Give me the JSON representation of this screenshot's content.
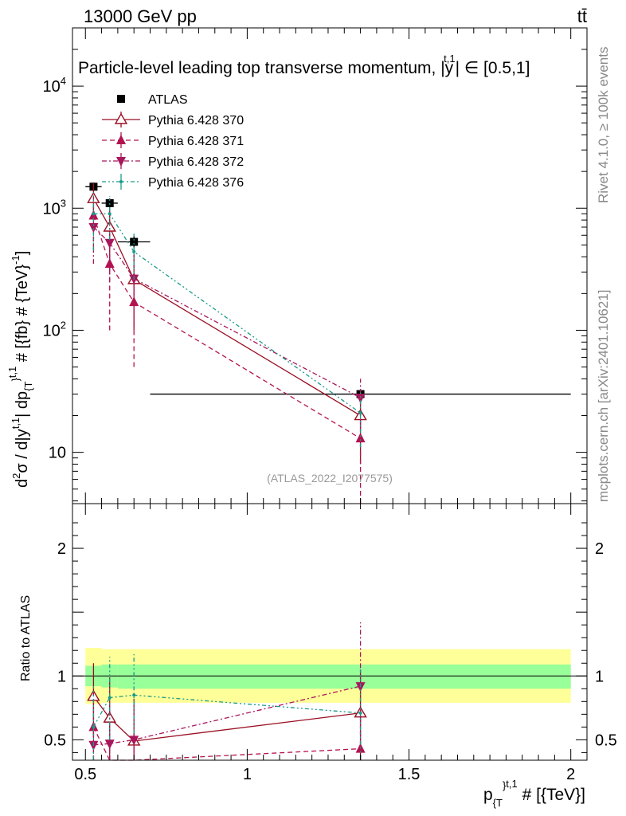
{
  "header": {
    "energy": "13000 GeV pp",
    "process": "tt̄"
  },
  "side_text": {
    "rivet": "Rivet 4.1.0, ≥ 100k events",
    "source": "mcplots.cern.ch [arXiv:2401.10621]"
  },
  "colors": {
    "atlas": "#000000",
    "p370": "#9a0f22",
    "p371": "#b3124f",
    "p372": "#a8175c",
    "p376": "#1a9a8a",
    "band_inner": "#99ff99",
    "band_outer": "#ffff99"
  },
  "chart_data": [
    {
      "type": "scatter",
      "title": "Particle-level leading top transverse momentum, |y^{t,1}| ∈ [0.5,1]",
      "title_main": "Particle-level leading top transverse momentum, |",
      "title_y": "y",
      "title_sup": "t,1",
      "title_tail": "| ∈ [0.5,1]",
      "ylabel": "d²σ / d|y^{t,1}| dp_{T}^{t,1} # [{fb} # {TeV}^{-1}]",
      "ylabel_parts": {
        "a": "d",
        "a_sup": "2",
        "b": "σ / d|y",
        "b_sup": "t,1",
        "c": "| dp",
        "c_sub": "{T",
        "c_sup": "}",
        "c_sup2": "t,1",
        "d": " # [{fb} # {TeV}",
        "d_sup": "-1",
        "e": "]"
      },
      "yscale": "log",
      "ylim": [
        3.8,
        30000
      ],
      "xlim": [
        0.46,
        2.05
      ],
      "yticks": [
        {
          "value": 10,
          "label": "10"
        },
        {
          "value": 100,
          "label": "10",
          "exp": "2"
        },
        {
          "value": 1000,
          "label": "10",
          "exp": "3"
        },
        {
          "value": 10000,
          "label": "10",
          "exp": "4"
        }
      ],
      "watermark": "(ATLAS_2022_I2077575)",
      "legend_position": "top-left",
      "series": [
        {
          "name": "ATLAS",
          "key": "atlas",
          "marker": "square",
          "line": "none",
          "x": [
            0.525,
            0.575,
            0.65,
            1.35
          ],
          "xerr": [
            0.025,
            0.025,
            0.05,
            0.65
          ],
          "y": [
            1500,
            1100,
            530,
            30
          ],
          "ylo": [
            1380,
            1000,
            470,
            27
          ],
          "yhi": [
            1620,
            1200,
            590,
            33
          ]
        },
        {
          "name": "Pythia 6.428 370",
          "key": "p370",
          "marker": "triangle-up-open",
          "line": "solid",
          "x": [
            0.525,
            0.575,
            0.65,
            1.35
          ],
          "y": [
            1200,
            700,
            260,
            20
          ],
          "ylo": [
            800,
            300,
            100,
            8
          ],
          "yhi": [
            1600,
            1000,
            420,
            32
          ]
        },
        {
          "name": "Pythia 6.428 371",
          "key": "p371",
          "marker": "triangle-up",
          "line": "dashed",
          "x": [
            0.525,
            0.575,
            0.65,
            1.35
          ],
          "y": [
            870,
            350,
            170,
            13
          ],
          "ylo": [
            460,
            100,
            50,
            3.8
          ],
          "yhi": [
            1300,
            600,
            290,
            23
          ]
        },
        {
          "name": "Pythia 6.428 372",
          "key": "p372",
          "marker": "triangle-down",
          "line": "dashdot",
          "x": [
            0.525,
            0.575,
            0.65,
            1.35
          ],
          "y": [
            700,
            520,
            265,
            28
          ],
          "ylo": [
            350,
            250,
            110,
            16
          ],
          "yhi": [
            1050,
            800,
            420,
            40
          ]
        },
        {
          "name": "Pythia 6.428 376",
          "key": "p376",
          "marker": "dot",
          "line": "dashdotdot",
          "x": [
            0.525,
            0.575,
            0.65,
            1.35
          ],
          "y": [
            900,
            900,
            440,
            21
          ],
          "ylo": [
            450,
            550,
            260,
            11
          ],
          "yhi": [
            1350,
            1250,
            620,
            31
          ]
        }
      ]
    },
    {
      "type": "scatter",
      "ylabel": "Ratio to ATLAS",
      "xlabel_parts": {
        "a": "p",
        "a_sub": "{T",
        "a_sup": "}",
        "a_sup2": "t,1",
        "b": " # [{TeV}]"
      },
      "ylim": [
        0.34,
        2.35
      ],
      "xlim": [
        0.46,
        2.05
      ],
      "yticks": [
        {
          "value": 0.5,
          "label": "0.5"
        },
        {
          "value": 1,
          "label": "1"
        },
        {
          "value": 2,
          "label": "2"
        }
      ],
      "xticks": [
        {
          "value": 0.5,
          "label": "0.5"
        },
        {
          "value": 1,
          "label": "1"
        },
        {
          "value": 1.5,
          "label": "1.5"
        },
        {
          "value": 2,
          "label": "2"
        }
      ],
      "bands": [
        {
          "x0": 0.5,
          "x1": 0.55,
          "inner": [
            0.92,
            1.08
          ],
          "outer": [
            0.78,
            1.22
          ]
        },
        {
          "x0": 0.55,
          "x1": 0.6,
          "inner": [
            0.91,
            1.09
          ],
          "outer": [
            0.79,
            1.21
          ]
        },
        {
          "x0": 0.6,
          "x1": 0.7,
          "inner": [
            0.9,
            1.09
          ],
          "outer": [
            0.79,
            1.21
          ]
        },
        {
          "x0": 0.7,
          "x1": 2.0,
          "inner": [
            0.9,
            1.09
          ],
          "outer": [
            0.79,
            1.21
          ]
        }
      ],
      "series": [
        {
          "key": "p370",
          "marker": "triangle-up-open",
          "line": "solid",
          "x": [
            0.525,
            0.575,
            0.65,
            1.35
          ],
          "y": [
            0.84,
            0.67,
            0.49,
            0.71
          ],
          "ylo": [
            0.52,
            0.3,
            0.15,
            0.3
          ],
          "yhi": [
            1.1,
            0.99,
            0.82,
            1.05
          ]
        },
        {
          "key": "p371",
          "marker": "triangle-up",
          "line": "dashed",
          "x": [
            0.525,
            0.575,
            0.65,
            1.35
          ],
          "y": [
            0.6,
            0.3,
            0.3,
            0.43
          ],
          "ylo": [
            0.3,
            0.1,
            0.1,
            0.1
          ],
          "yhi": [
            0.9,
            0.54,
            0.55,
            0.75
          ]
        },
        {
          "key": "p372",
          "marker": "triangle-down",
          "line": "dashdot",
          "x": [
            0.525,
            0.575,
            0.65,
            1.35
          ],
          "y": [
            0.46,
            0.47,
            0.5,
            0.92
          ],
          "ylo": [
            0.2,
            0.2,
            0.2,
            0.45
          ],
          "yhi": [
            0.72,
            0.74,
            0.8,
            1.42
          ]
        },
        {
          "key": "p376",
          "marker": "dot",
          "line": "dashdotdot",
          "x": [
            0.525,
            0.575,
            0.65,
            1.35
          ],
          "y": [
            0.6,
            0.83,
            0.85,
            0.71
          ],
          "ylo": [
            0.3,
            0.5,
            0.55,
            0.35
          ],
          "yhi": [
            0.92,
            1.15,
            1.17,
            1.05
          ]
        }
      ]
    }
  ]
}
